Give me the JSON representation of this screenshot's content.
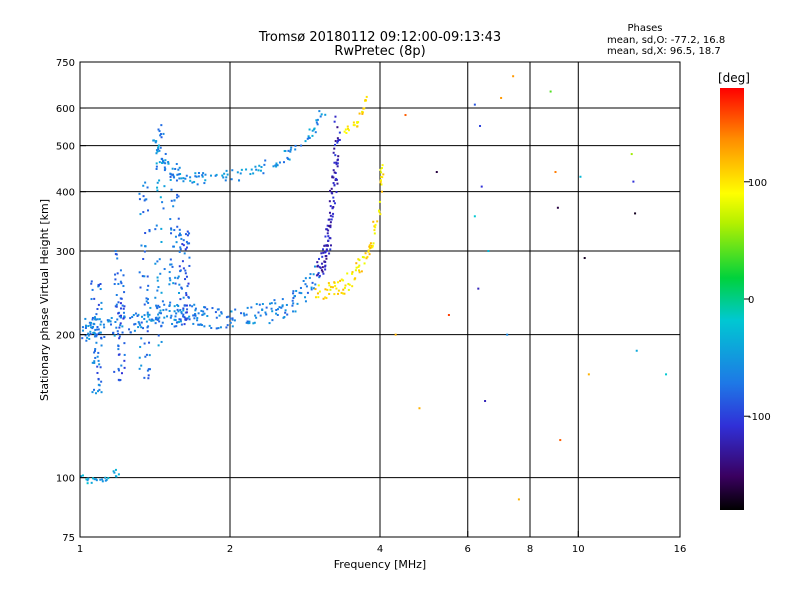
{
  "chart_data": {
    "type": "scatter",
    "title": "Tromsø 20180112 09:12:00-09:13:43",
    "subtitle": "RwPretec (8p)",
    "stats": {
      "heading": "Phases",
      "line_o": "mean, sd,O: -77.2, 16.8",
      "line_x": "mean, sd,X:  96.5, 18.7"
    },
    "xlabel": "Frequency [MHz]",
    "ylabel": "Stationary phase Virtual Height [km]",
    "x_scale": "log",
    "y_scale": "log",
    "xlim": [
      1,
      16
    ],
    "ylim": [
      75,
      750
    ],
    "x_ticks": [
      1,
      2,
      4,
      6,
      8,
      10,
      16
    ],
    "y_ticks": [
      75,
      100,
      200,
      300,
      400,
      500,
      600,
      750
    ],
    "x_gridlines": [
      2,
      4,
      6,
      8,
      10
    ],
    "y_gridlines": [
      100,
      200,
      300,
      400,
      500,
      600
    ],
    "colorbar": {
      "label": "[deg]",
      "range": [
        -180,
        180
      ],
      "ticks": [
        -100,
        0,
        100
      ]
    },
    "grid": true,
    "traces": [
      {
        "name": "",
        "kind": "curve",
        "x": [
          1.0,
          1.05,
          1.1,
          1.15,
          1.2
        ],
        "y": [
          100,
          98,
          98,
          100,
          104
        ],
        "phase": -40,
        "density": 6
      },
      {
        "name": "",
        "kind": "curve",
        "x": [
          1.02,
          1.05,
          1.1,
          1.2,
          1.3,
          1.4,
          1.5,
          1.6,
          1.7,
          1.8,
          2.0,
          2.2,
          2.4,
          2.6,
          2.8,
          3.0
        ],
        "y": [
          205,
          205,
          207,
          210,
          215,
          218,
          220,
          220,
          220,
          218,
          217,
          218,
          222,
          230,
          245,
          268
        ],
        "phase": -65,
        "density": 18,
        "spread": 0.055
      },
      {
        "name": "",
        "kind": "curve",
        "x": [
          1.4,
          1.45,
          1.5,
          1.6,
          1.7,
          1.8,
          2.0,
          2.2,
          2.4,
          2.6,
          2.8,
          2.95,
          3.1
        ],
        "y": [
          520,
          480,
          450,
          430,
          425,
          425,
          430,
          440,
          455,
          475,
          500,
          540,
          600
        ],
        "phase": -55,
        "density": 10,
        "spread": 0.03
      },
      {
        "name": "",
        "kind": "curve",
        "x": [
          3.0,
          3.1,
          3.15,
          3.2,
          3.25,
          3.3
        ],
        "y": [
          270,
          290,
          320,
          380,
          450,
          560
        ],
        "phase": -120,
        "density": 22,
        "spread": 0.05
      },
      {
        "name": "",
        "kind": "curve",
        "x": [
          3.0,
          3.2,
          3.4,
          3.6,
          3.8,
          3.95,
          4.05
        ],
        "y": [
          245,
          248,
          255,
          270,
          300,
          350,
          440
        ],
        "phase": 100,
        "density": 16,
        "spread": 0.04
      },
      {
        "name": "",
        "kind": "curve",
        "x": [
          3.4,
          3.5,
          3.6,
          3.7,
          3.75
        ],
        "y": [
          530,
          545,
          560,
          590,
          630
        ],
        "phase": 100,
        "density": 6,
        "spread": 0.02
      }
    ],
    "scatter_columns": [
      {
        "x": 1.08,
        "y_range": [
          150,
          260
        ],
        "phase": -75
      },
      {
        "x": 1.2,
        "y_range": [
          160,
          300
        ],
        "phase": -85
      },
      {
        "x": 1.35,
        "y_range": [
          160,
          420
        ],
        "phase": -70
      },
      {
        "x": 1.45,
        "y_range": [
          180,
          560
        ],
        "phase": -60
      },
      {
        "x": 1.55,
        "y_range": [
          200,
          460
        ],
        "phase": -65
      },
      {
        "x": 1.62,
        "y_range": [
          210,
          330
        ],
        "phase": -85
      }
    ],
    "sparse_points": [
      {
        "x": 4.3,
        "y": 200,
        "phase": 120
      },
      {
        "x": 4.5,
        "y": 580,
        "phase": 150
      },
      {
        "x": 5.2,
        "y": 440,
        "phase": -160
      },
      {
        "x": 5.5,
        "y": 220,
        "phase": 160
      },
      {
        "x": 6.2,
        "y": 610,
        "phase": -90
      },
      {
        "x": 6.2,
        "y": 355,
        "phase": -20
      },
      {
        "x": 6.35,
        "y": 550,
        "phase": -100
      },
      {
        "x": 6.4,
        "y": 410,
        "phase": -110
      },
      {
        "x": 6.6,
        "y": 300,
        "phase": -30
      },
      {
        "x": 7.0,
        "y": 630,
        "phase": 130
      },
      {
        "x": 7.2,
        "y": 200,
        "phase": -60
      },
      {
        "x": 7.4,
        "y": 700,
        "phase": 130
      },
      {
        "x": 7.6,
        "y": 90,
        "phase": 120
      },
      {
        "x": 8.8,
        "y": 650,
        "phase": 40
      },
      {
        "x": 9.0,
        "y": 440,
        "phase": 140
      },
      {
        "x": 9.1,
        "y": 370,
        "phase": -160
      },
      {
        "x": 9.2,
        "y": 120,
        "phase": 150
      },
      {
        "x": 10.1,
        "y": 430,
        "phase": -30
      },
      {
        "x": 10.3,
        "y": 290,
        "phase": -170
      },
      {
        "x": 10.5,
        "y": 165,
        "phase": 120
      },
      {
        "x": 12.8,
        "y": 480,
        "phase": 60
      },
      {
        "x": 12.9,
        "y": 420,
        "phase": -110
      },
      {
        "x": 13.0,
        "y": 360,
        "phase": -170
      },
      {
        "x": 13.1,
        "y": 185,
        "phase": -40
      },
      {
        "x": 15.0,
        "y": 165,
        "phase": -20
      },
      {
        "x": 4.8,
        "y": 140,
        "phase": 120
      },
      {
        "x": 6.5,
        "y": 145,
        "phase": -120
      },
      {
        "x": 6.3,
        "y": 250,
        "phase": -120
      }
    ]
  }
}
